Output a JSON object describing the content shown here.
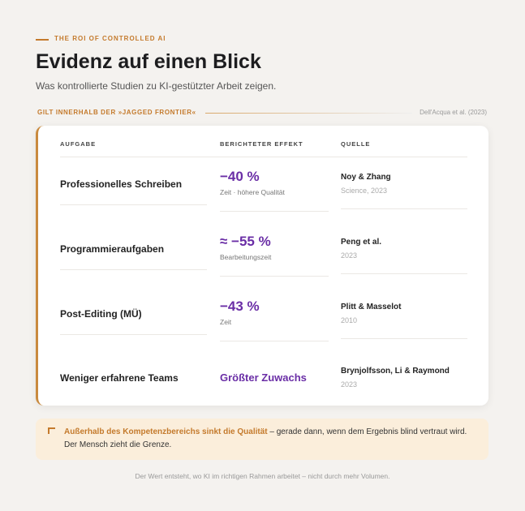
{
  "header": {
    "eyebrow": "THE ROI OF CONTROLLED AI",
    "title": "Evidenz auf einen Blick",
    "subtitle": "Was kontrollierte Studien zu KI-gestützter Arbeit zeigen."
  },
  "section": {
    "label": "GILT INNERHALB DER »JAGGED FRONTIER«",
    "source": "Dell'Acqua et al. (2023)"
  },
  "table": {
    "columns": [
      "AUFGABE",
      "BERICHTETER EFFEKT",
      "QUELLE"
    ],
    "rows": [
      {
        "task": "Professionelles Schreiben",
        "effect": "−40 %",
        "effect_note": "Zeit · höhere Qualität",
        "source": "Noy & Zhang",
        "source_detail": "Science, 2023"
      },
      {
        "task": "Programmieraufgaben",
        "effect": "≈ −55 %",
        "effect_note": "Bearbeitungszeit",
        "source": "Peng et al.",
        "source_detail": "2023"
      },
      {
        "task": "Post-Editing (MÜ)",
        "effect": "−43 %",
        "effect_note": "Zeit",
        "source": "Plitt & Masselot",
        "source_detail": "2010"
      },
      {
        "task": "Weniger erfahrene Teams",
        "effect": "Größter Zuwachs",
        "source": "Brynjolfsson, Li & Raymond",
        "source_detail": "2023"
      }
    ]
  },
  "callout": {
    "emphasis": "Außerhalb des Kompetenzbereichs sinkt die Qualität",
    "text": " – gerade dann, wenn dem Ergebnis blind vertraut wird. Der Mensch zieht die Grenze."
  },
  "footer": "Der Wert entsteht, wo KI im richtigen Rahmen arbeitet – nicht durch mehr Volumen."
}
